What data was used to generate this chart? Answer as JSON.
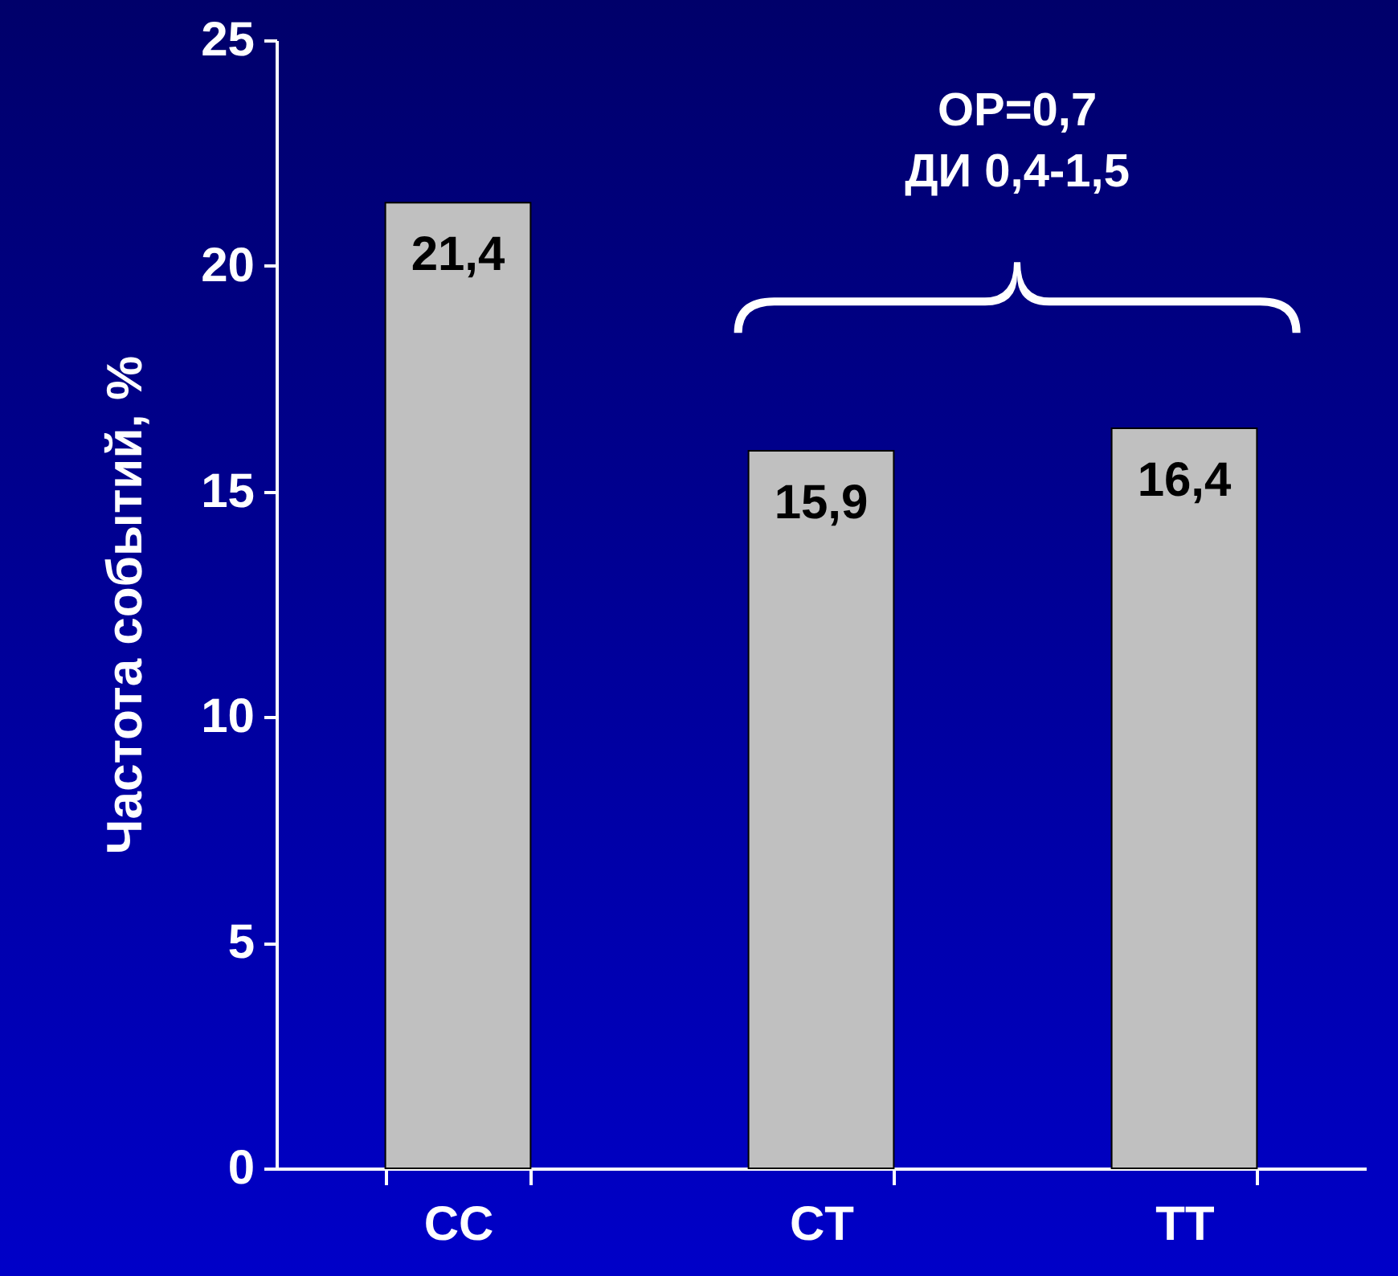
{
  "chart_data": {
    "type": "bar",
    "ylabel": "Частота событий, %",
    "categories": [
      "CC",
      "CT",
      "TT"
    ],
    "values": [
      21.4,
      15.9,
      16.4
    ],
    "value_labels": [
      "21,4",
      "15,9",
      "16,4"
    ],
    "color": "#c0c0c0",
    "ylim": [
      0,
      25
    ],
    "yticks": [
      0,
      5,
      10,
      15,
      20,
      25
    ],
    "grid": false,
    "annotations": [
      "ОР=0,7",
      "ДИ 0,4-1,5"
    ]
  }
}
